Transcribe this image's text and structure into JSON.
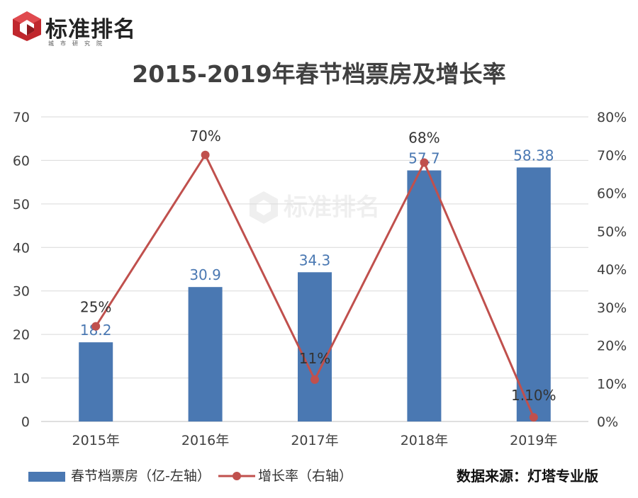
{
  "brand": {
    "name": "标准排名",
    "subtitle": "城市研究院"
  },
  "watermark": {
    "text": "标准排名"
  },
  "colors": {
    "bar": "#4a78b2",
    "line": "#c0504d",
    "bar_label": "#4a78b2",
    "line_label": "#333333",
    "grid": "#d9d9d9",
    "axis_text": "#404040",
    "brand_red": "#c0272d"
  },
  "chart_data": {
    "type": "bar",
    "title": "2015-2019年春节档票房及增长率",
    "categories": [
      "2015年",
      "2016年",
      "2017年",
      "2018年",
      "2019年"
    ],
    "series": [
      {
        "name": "春节档票房（亿-左轴）",
        "type": "bar",
        "axis": "left",
        "values": [
          18.2,
          30.9,
          34.3,
          57.7,
          58.38
        ],
        "labels": [
          "18.2",
          "30.9",
          "34.3",
          "57.7",
          "58.38"
        ]
      },
      {
        "name": "增长率（右轴）",
        "type": "line",
        "axis": "right",
        "values": [
          25,
          70,
          11,
          68,
          1.1
        ],
        "labels": [
          "25%",
          "70%",
          "11%",
          "68%",
          "1.10%"
        ]
      }
    ],
    "left_axis": {
      "ylim": [
        0,
        70
      ],
      "ticks": [
        "0",
        "10",
        "20",
        "30",
        "40",
        "50",
        "60",
        "70"
      ]
    },
    "right_axis": {
      "ylim": [
        0,
        80
      ],
      "ticks": [
        "0%",
        "10%",
        "20%",
        "30%",
        "40%",
        "50%",
        "60%",
        "70%",
        "80%"
      ]
    },
    "grid": true,
    "legend_position": "bottom-left"
  },
  "legend": {
    "bar_label": "春节档票房（亿-左轴）",
    "line_label": "增长率（右轴）"
  },
  "source": {
    "text": "数据来源：灯塔专业版"
  }
}
